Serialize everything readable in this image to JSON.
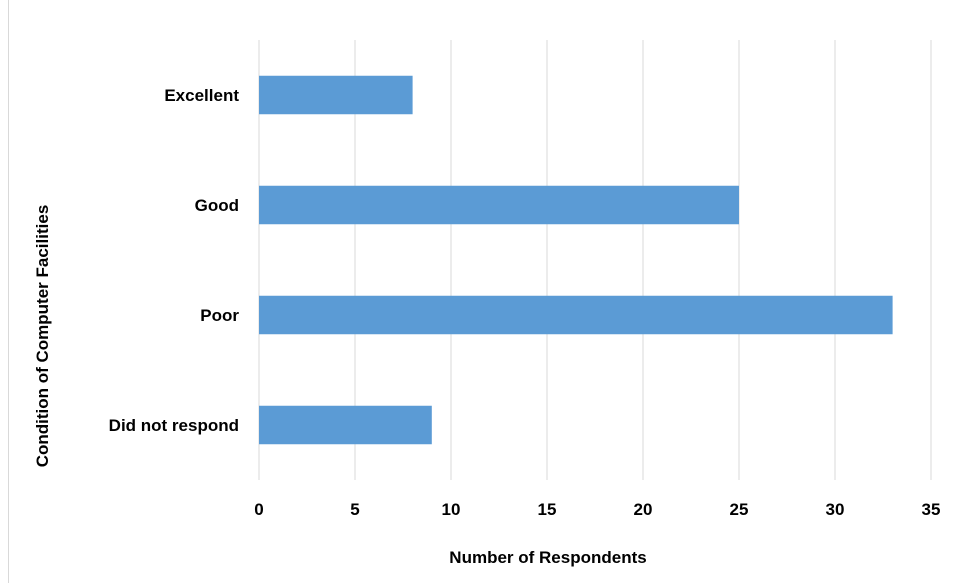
{
  "chart_data": {
    "type": "bar",
    "orientation": "horizontal",
    "categories": [
      "Excellent",
      "Good",
      "Poor",
      "Did not respond"
    ],
    "values": [
      8,
      25,
      33,
      9
    ],
    "title": "",
    "xlabel": "Number of Respondents",
    "ylabel": "Condition of Computer Facilities",
    "xlim": [
      0,
      35
    ],
    "xticks": [
      0,
      5,
      10,
      15,
      20,
      25,
      30,
      35
    ],
    "grid": "vertical",
    "legend": "none",
    "bar_color": "#5b9bd5",
    "grid_color": "#d9d9d9"
  }
}
